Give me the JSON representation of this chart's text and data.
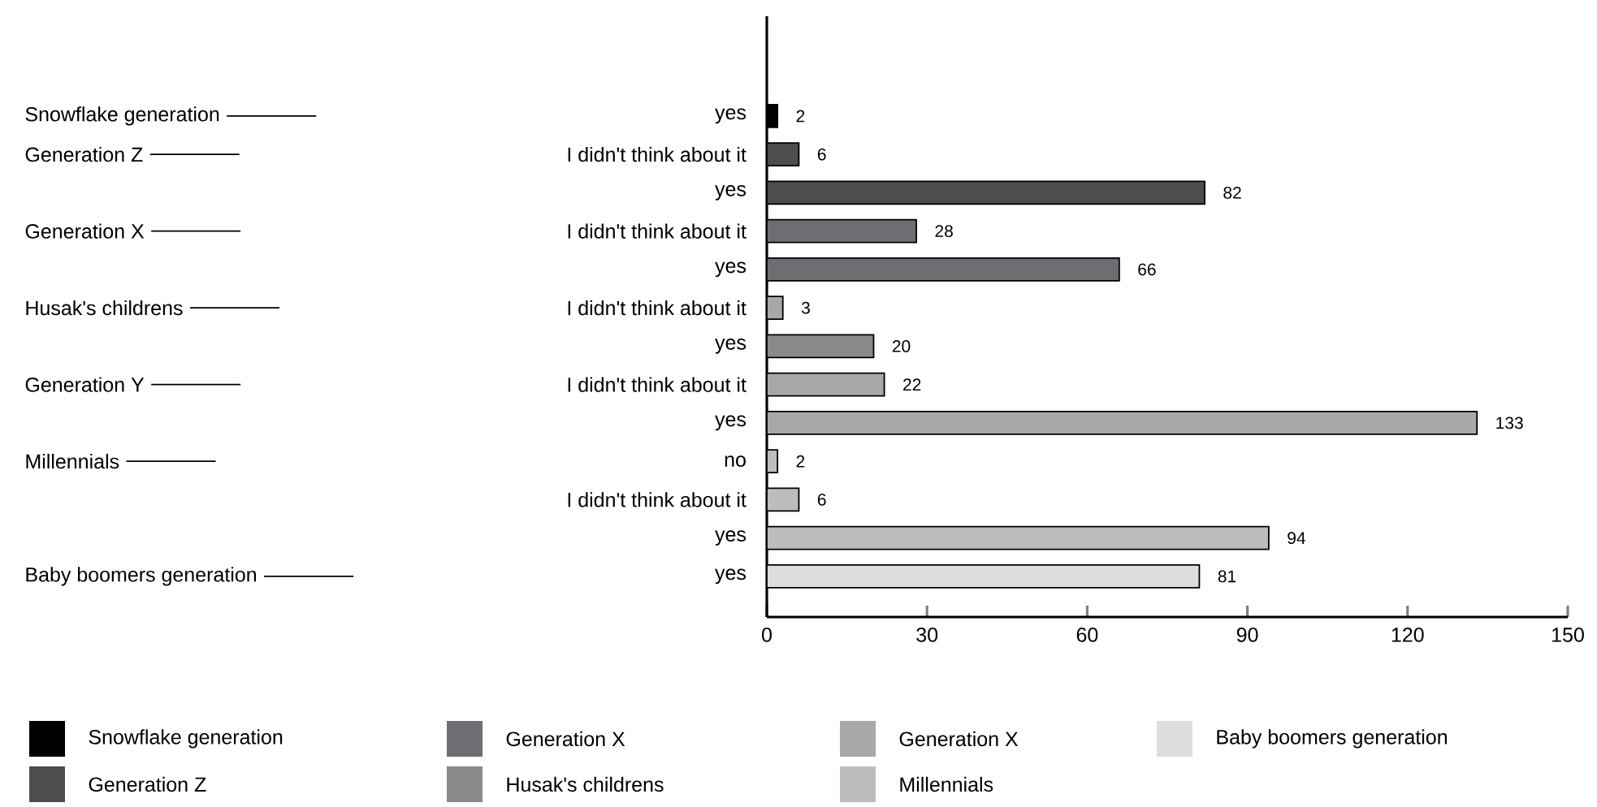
{
  "chart_data": {
    "type": "bar",
    "orientation": "horizontal",
    "categories": [
      "yes",
      "I didn't think about it",
      "yes",
      "I didn't think about it",
      "yes",
      "I didn't think about it",
      "yes",
      "I didn't think about it",
      "yes",
      "no",
      "I didn't think about it",
      "yes",
      "yes"
    ],
    "series": [
      {
        "name": "Snowflake generation",
        "color": "#000000",
        "values": [
          2,
          null,
          null,
          null,
          null,
          null,
          null,
          null,
          null,
          null,
          null,
          null,
          null
        ]
      },
      {
        "name": "Generation Z",
        "color": "#4d4d4f",
        "values": [
          null,
          6,
          82,
          null,
          null,
          null,
          null,
          null,
          null,
          null,
          null,
          null,
          null
        ]
      },
      {
        "name": "Generation X",
        "color": "#6d6e71",
        "values": [
          null,
          null,
          null,
          28,
          66,
          null,
          null,
          null,
          null,
          null,
          null,
          null,
          null
        ]
      },
      {
        "name": "Husak's childrens",
        "color": "#8a8a8c",
        "values": [
          null,
          null,
          null,
          null,
          null,
          null,
          20,
          null,
          null,
          null,
          null,
          null,
          null
        ]
      },
      {
        "name": "Generation X",
        "color": "#a7a8aa",
        "values": [
          null,
          null,
          null,
          null,
          null,
          3,
          null,
          22,
          133,
          null,
          null,
          null,
          null
        ]
      },
      {
        "name": "Millennials",
        "color": "#bcbdbf",
        "values": [
          null,
          null,
          null,
          null,
          null,
          null,
          null,
          null,
          null,
          2,
          6,
          94,
          null
        ]
      },
      {
        "name": "Baby boomers generation",
        "color": "#dcdddf",
        "values": [
          null,
          null,
          null,
          null,
          null,
          null,
          null,
          null,
          null,
          null,
          null,
          null,
          81
        ]
      }
    ],
    "annotations": [
      "Snowflake generation",
      "Generation Z",
      "Generation X",
      "Husak's childrens",
      "Generation Y",
      "Millennials",
      "Baby boomers generation"
    ],
    "xlim": [
      0,
      150
    ],
    "xticks": [
      0,
      30,
      60,
      90,
      120,
      150
    ],
    "data_labels": true,
    "grid": false,
    "legend": "bottom"
  }
}
